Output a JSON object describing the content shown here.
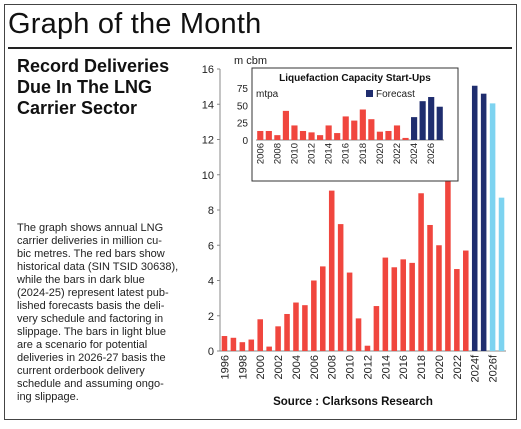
{
  "header": {
    "title": "Graph of the Month"
  },
  "headline_lines": [
    "Record Deliveries",
    "Due In The LNG",
    "Carrier Sector"
  ],
  "description_lines": [
    "The graph shows annual LNG",
    "carrier deliveries in million cu-",
    "bic metres. The red bars show",
    "historical data (SIN TSID 30638),",
    "while the bars in dark blue",
    "(2024-25) represent latest pub-",
    "lished forecasts basis the deli-",
    "very schedule and factoring in",
    "slippage. The bars in light blue",
    "are a scenario for potential",
    "deliveries in 2026-27 basis the",
    "current orderbook delivery",
    "schedule and assuming ongo-",
    "ing slippage."
  ],
  "source": "Source : Clarksons Research",
  "colors": {
    "historical": "#f0463e",
    "forecast": "#1f2d6e",
    "scenario": "#7dd3f0"
  },
  "chart_data": [
    {
      "type": "bar",
      "unit_label": "m cbm",
      "ylim": [
        0,
        16
      ],
      "yticks": [
        0,
        2,
        4,
        6,
        8,
        10,
        12,
        14,
        16
      ],
      "grid": false,
      "x": [
        "1996",
        "1997",
        "1998",
        "1999",
        "2000",
        "2001",
        "2002",
        "2003",
        "2004",
        "2005",
        "2006",
        "2007",
        "2008",
        "2009",
        "2010",
        "2011",
        "2012",
        "2013",
        "2014",
        "2015",
        "2016",
        "2017",
        "2018",
        "2019",
        "2020",
        "2021",
        "2022",
        "2023",
        "2024f",
        "2025f",
        "2026f",
        "2027f"
      ],
      "xtick_labels": [
        "1996",
        "",
        "1998",
        "",
        "2000",
        "",
        "2002",
        "",
        "2004",
        "",
        "2006",
        "",
        "2008",
        "",
        "2010",
        "",
        "2012",
        "",
        "2014",
        "",
        "2016",
        "",
        "2018",
        "",
        "2020",
        "",
        "2022",
        "",
        "2024f",
        "",
        "2026f",
        ""
      ],
      "values": [
        0.85,
        0.75,
        0.5,
        0.65,
        1.8,
        0.25,
        1.4,
        2.1,
        2.75,
        2.6,
        4.0,
        4.8,
        9.1,
        7.2,
        4.45,
        1.85,
        0.3,
        2.55,
        5.3,
        4.75,
        5.2,
        5.0,
        8.95,
        7.15,
        6.0,
        10.05,
        4.65,
        5.7,
        15.05,
        14.6,
        14.05,
        8.7
      ],
      "categories_kind": [
        "historical",
        "historical",
        "historical",
        "historical",
        "historical",
        "historical",
        "historical",
        "historical",
        "historical",
        "historical",
        "historical",
        "historical",
        "historical",
        "historical",
        "historical",
        "historical",
        "historical",
        "historical",
        "historical",
        "historical",
        "historical",
        "historical",
        "historical",
        "historical",
        "historical",
        "historical",
        "historical",
        "historical",
        "forecast",
        "forecast",
        "scenario",
        "scenario"
      ]
    },
    {
      "type": "bar",
      "title": "Liquefaction Capacity Start-Ups",
      "unit_label": "mtpa",
      "legend": "Forecast",
      "legend_position": "top-right",
      "ylim": [
        0,
        75
      ],
      "yticks": [
        0,
        25,
        50,
        75
      ],
      "x": [
        "2006",
        "2007",
        "2008",
        "2009",
        "2010",
        "2011",
        "2012",
        "2013",
        "2014",
        "2015",
        "2016",
        "2017",
        "2018",
        "2019",
        "2020",
        "2021",
        "2022",
        "2023",
        "2024",
        "2025",
        "2026",
        "2027"
      ],
      "xtick_labels": [
        "2006",
        "",
        "2008",
        "",
        "2010",
        "",
        "2012",
        "",
        "2014",
        "",
        "2016",
        "",
        "2018",
        "",
        "2020",
        "",
        "2022",
        "",
        "2024",
        "",
        "2026",
        ""
      ],
      "values": [
        13,
        13,
        7,
        42,
        21,
        13,
        11,
        7,
        21,
        10,
        34,
        28,
        44,
        30,
        12,
        13,
        21,
        3,
        33,
        56,
        62,
        48
      ],
      "categories_kind": [
        "historical",
        "historical",
        "historical",
        "historical",
        "historical",
        "historical",
        "historical",
        "historical",
        "historical",
        "historical",
        "historical",
        "historical",
        "historical",
        "historical",
        "historical",
        "historical",
        "historical",
        "historical",
        "forecast",
        "forecast",
        "forecast",
        "forecast"
      ]
    }
  ]
}
